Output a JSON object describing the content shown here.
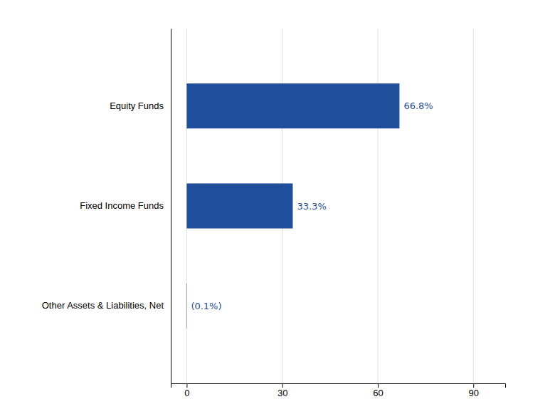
{
  "chart_data": {
    "type": "bar",
    "orientation": "horizontal",
    "categories": [
      "Other Assets & Liabilities, Net",
      "Fixed Income Funds",
      "Equity Funds"
    ],
    "values": [
      -0.1,
      33.3,
      66.8
    ],
    "value_labels": [
      "(0.1%)",
      "33.3%",
      "66.8%"
    ],
    "data_labels": true,
    "color": "#1F4E9B",
    "xlim": [
      -5,
      100
    ],
    "xticks": [
      0,
      30,
      60,
      90
    ],
    "grid": true
  }
}
